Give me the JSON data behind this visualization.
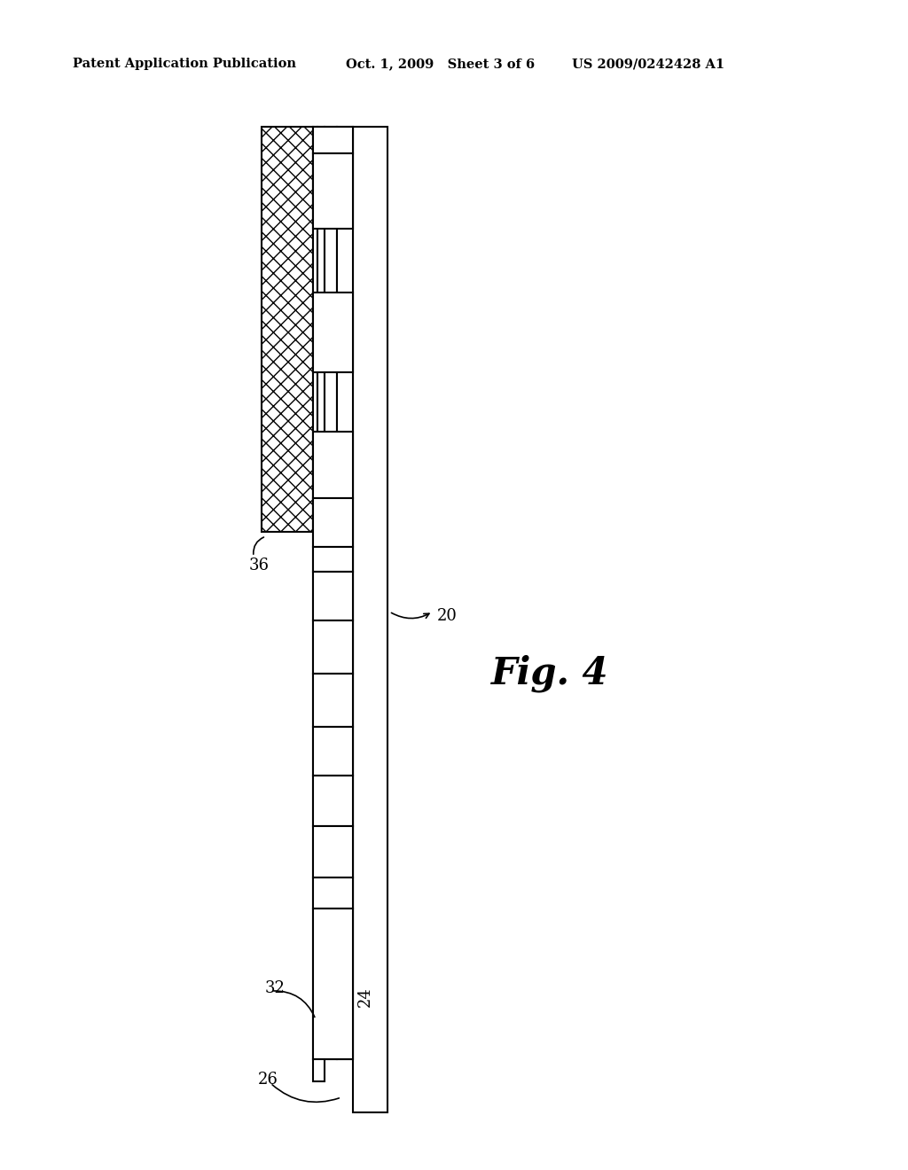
{
  "header_left": "Patent Application Publication",
  "header_mid": "Oct. 1, 2009   Sheet 3 of 6",
  "header_right": "US 2009/0242428 A1",
  "fig_label": "Fig. 4",
  "ref_20": "20",
  "ref_24": "24",
  "ref_26": "26",
  "ref_32": "32",
  "ref_36": "36",
  "bg_color": "#ffffff",
  "line_color": "#000000",
  "lw": 1.5
}
